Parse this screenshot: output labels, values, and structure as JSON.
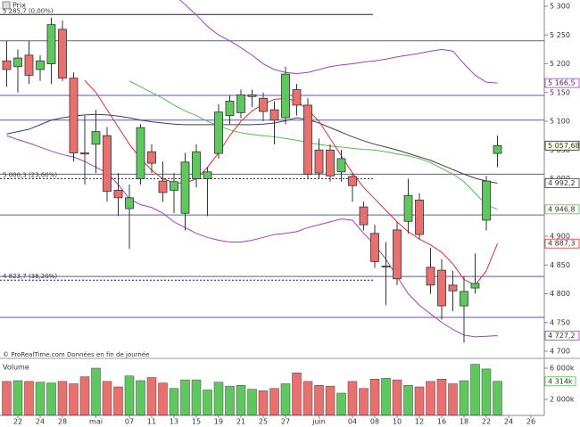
{
  "chart_data": {
    "type": "candlestick",
    "header": "Prix",
    "footer": "© ProRealTime.com  Données en fin de journée",
    "categories": [
      null,
      "22",
      null,
      "24",
      null,
      "28",
      null,
      null,
      "mai",
      null,
      null,
      "07",
      null,
      "11",
      null,
      "13",
      null,
      "15",
      null,
      "19",
      null,
      "21",
      null,
      "25",
      null,
      "27",
      null,
      null,
      "juin",
      null,
      null,
      "04",
      null,
      "08",
      null,
      "10",
      null,
      "12",
      null,
      "16",
      null,
      "18",
      null,
      "22",
      null,
      "24",
      null,
      "26"
    ],
    "ylim": [
      4690.7,
      5310.9
    ],
    "yticks": [
      {
        "value": 4700,
        "label": "4 700"
      },
      {
        "value": 4750,
        "label": "4 750"
      },
      {
        "value": 4800,
        "label": "4 800"
      },
      {
        "value": 4850,
        "label": "4 850"
      },
      {
        "value": 4900,
        "label": "4 900"
      },
      {
        "value": 4950,
        "label": "4 950"
      },
      {
        "value": 5000,
        "label": "5 000"
      },
      {
        "value": 5050,
        "label": "5 050"
      },
      {
        "value": 5100,
        "label": "5 100"
      },
      {
        "value": 5150,
        "label": "5 150"
      },
      {
        "value": 5200,
        "label": "5 200"
      },
      {
        "value": 5250,
        "label": "5 250"
      },
      {
        "value": 5300,
        "label": "5 300"
      }
    ],
    "ohlc": {
      "up_color": "#5ec85e",
      "down_color": "#e8706f",
      "last_label": "5 057,68",
      "open": [
        5205,
        5195,
        5215,
        5190,
        5200,
        5260,
        5175,
        5045,
        5060,
        5075,
        4980,
        4948,
        5000,
        5047,
        4996,
        4980,
        4940,
        5000,
        5000,
        5044,
        5110,
        5115,
        5143,
        5140,
        5120,
        5106,
        5155,
        5128,
        5050,
        5050,
        5012,
        5004,
        4951,
        4905,
        4848,
        4911,
        4926,
        4963,
        4846,
        4841,
        4815,
        4779,
        4810,
        4928,
        5044,
        null,
        null,
        null
      ],
      "high": [
        5240,
        5225,
        5240,
        5215,
        5280,
        5275,
        5185,
        5110,
        5120,
        5090,
        5010,
        4990,
        5095,
        5060,
        5030,
        5010,
        5045,
        5060,
        5020,
        5130,
        5145,
        5155,
        5155,
        5150,
        5135,
        5195,
        5165,
        5140,
        5070,
        5060,
        5050,
        5010,
        4960,
        4920,
        4890,
        4925,
        5000,
        4975,
        4880,
        4860,
        4840,
        4830,
        4870,
        5005,
        5075,
        null,
        null,
        null
      ],
      "low": [
        5160,
        5150,
        5165,
        5170,
        5165,
        5170,
        5030,
        4990,
        5010,
        4960,
        4935,
        4878,
        4990,
        5010,
        4960,
        4940,
        4910,
        4985,
        4935,
        5035,
        5095,
        5105,
        5125,
        5100,
        5060,
        5095,
        5110,
        5000,
        5000,
        4995,
        4995,
        4960,
        4910,
        4845,
        4780,
        4815,
        4905,
        4895,
        4800,
        4755,
        4770,
        4715,
        4800,
        4910,
        5020,
        null,
        null,
        null
      ],
      "close": [
        5190,
        5210,
        5180,
        5205,
        5268,
        5175,
        5045,
        5043,
        5082,
        4978,
        4967,
        4967,
        5089,
        5027,
        4976,
        4995,
        5029,
        5047,
        5012,
        5116,
        5135,
        5146,
        5146,
        5117,
        5102,
        5182,
        5128,
        5008,
        5010,
        5005,
        5035,
        4988,
        4920,
        4856,
        4848,
        4826,
        4971,
        4903,
        4815,
        4779,
        4805,
        4804,
        4818,
        4996,
        5057.68,
        null,
        null,
        null
      ]
    },
    "series": [
      {
        "color": "#404040",
        "last_label": "4 992,2",
        "values": [
          5078,
          5082,
          5086,
          5094,
          5102,
          5106,
          5109,
          5111,
          5112,
          5111,
          5109,
          5106,
          5102,
          5099,
          5097,
          5095,
          5094,
          5094,
          5094,
          5094,
          5094,
          5094,
          5094,
          5095,
          5097,
          5101,
          5106,
          5103,
          5097,
          5089,
          5081,
          5073,
          5066,
          5060,
          5055,
          5050,
          5044,
          5038,
          5032,
          5024,
          5016,
          5008,
          5001,
          4996,
          4992.2,
          null,
          null,
          null
        ]
      },
      {
        "color": "#4fbf4f",
        "last_label": "4 946,8",
        "values": [
          null,
          null,
          null,
          null,
          null,
          null,
          null,
          null,
          null,
          null,
          null,
          5170,
          5160,
          5150,
          5140,
          5128,
          5118,
          5110,
          5100,
          5092,
          5085,
          5080,
          5077,
          5075,
          5073,
          5070,
          5067,
          5063,
          5060,
          5057,
          5055,
          5053,
          5051,
          5050,
          5047,
          5043,
          5040,
          5035,
          5028,
          5018,
          5008,
          4995,
          4975,
          4955,
          4946.8,
          null,
          null,
          null
        ]
      },
      {
        "color": "#e03030",
        "last_label": "4 887,3",
        "values": [
          null,
          null,
          null,
          null,
          null,
          null,
          null,
          5171,
          5150,
          5120,
          5090,
          5060,
          5035,
          5015,
          5000,
          4993,
          4992,
          5000,
          5020,
          5045,
          5075,
          5100,
          5118,
          5130,
          5138,
          5140,
          5135,
          5120,
          5100,
          5070,
          5040,
          5010,
          4985,
          4965,
          4945,
          4925,
          4908,
          4895,
          4885,
          4872,
          4852,
          4825,
          4815,
          4840,
          4887.3,
          null,
          null,
          null
        ]
      },
      {
        "color": "#a040c0",
        "last_label": "5 166,5",
        "values": [
          null,
          null,
          null,
          null,
          null,
          null,
          null,
          null,
          null,
          null,
          null,
          null,
          null,
          null,
          null,
          5320,
          5303,
          5285,
          5265,
          5250,
          5240,
          5228,
          5215,
          5200,
          5190,
          5185,
          5183,
          5185,
          5190,
          5195,
          5198,
          5200,
          5203,
          5205,
          5208,
          5212,
          5215,
          5218,
          5222,
          5225,
          5222,
          5200,
          5180,
          5168,
          5166.5,
          null,
          null,
          null
        ]
      },
      {
        "color": "#a040c0",
        "last_label": "4 727,2",
        "values": [
          5075,
          5068,
          5062,
          5055,
          5048,
          5042,
          5038,
          5030,
          5020,
          5010,
          4990,
          4965,
          4955,
          4950,
          4940,
          4925,
          4915,
          4905,
          4898,
          4893,
          4890,
          4890,
          4893,
          4898,
          4903,
          4905,
          4908,
          4915,
          4920,
          4925,
          4930,
          4928,
          4905,
          4885,
          4860,
          4830,
          4800,
          4780,
          4765,
          4750,
          4738,
          4728,
          4725,
          4726,
          4727.2,
          null,
          null,
          null
        ]
      }
    ],
    "levels": {
      "color": "#5a5ab4",
      "values": [
        5240,
        5145,
        5102,
        5008,
        4937,
        4830,
        4759
      ]
    },
    "fibonacci": [
      {
        "value": 5285.7,
        "label": "5 285,7 (0,00%)"
      },
      {
        "value": 5000.3,
        "label": "5 000,3 (23,60%)"
      },
      {
        "value": 4823.7,
        "label": "4 823,7 (38,20%)"
      }
    ],
    "volume": {
      "title": "Volume",
      "ylim": [
        0,
        6800
      ],
      "yticks": [
        {
          "value": 6000,
          "label": "6 000k"
        },
        {
          "value": 2000,
          "label": "2 000k"
        }
      ],
      "last_label": "4 314k",
      "values": [
        4300,
        4400,
        4300,
        4200,
        4100,
        4300,
        4000,
        4900,
        6000,
        4300,
        3600,
        5000,
        4400,
        4800,
        4100,
        3400,
        4500,
        4500,
        3200,
        4200,
        3700,
        3800,
        3300,
        3100,
        3400,
        4000,
        5400,
        4300,
        3800,
        3700,
        2800,
        4300,
        3400,
        4600,
        4700,
        4500,
        3800,
        3600,
        4300,
        4600,
        4000,
        4400,
        6500,
        5900,
        4314,
        null,
        null,
        null
      ]
    }
  }
}
